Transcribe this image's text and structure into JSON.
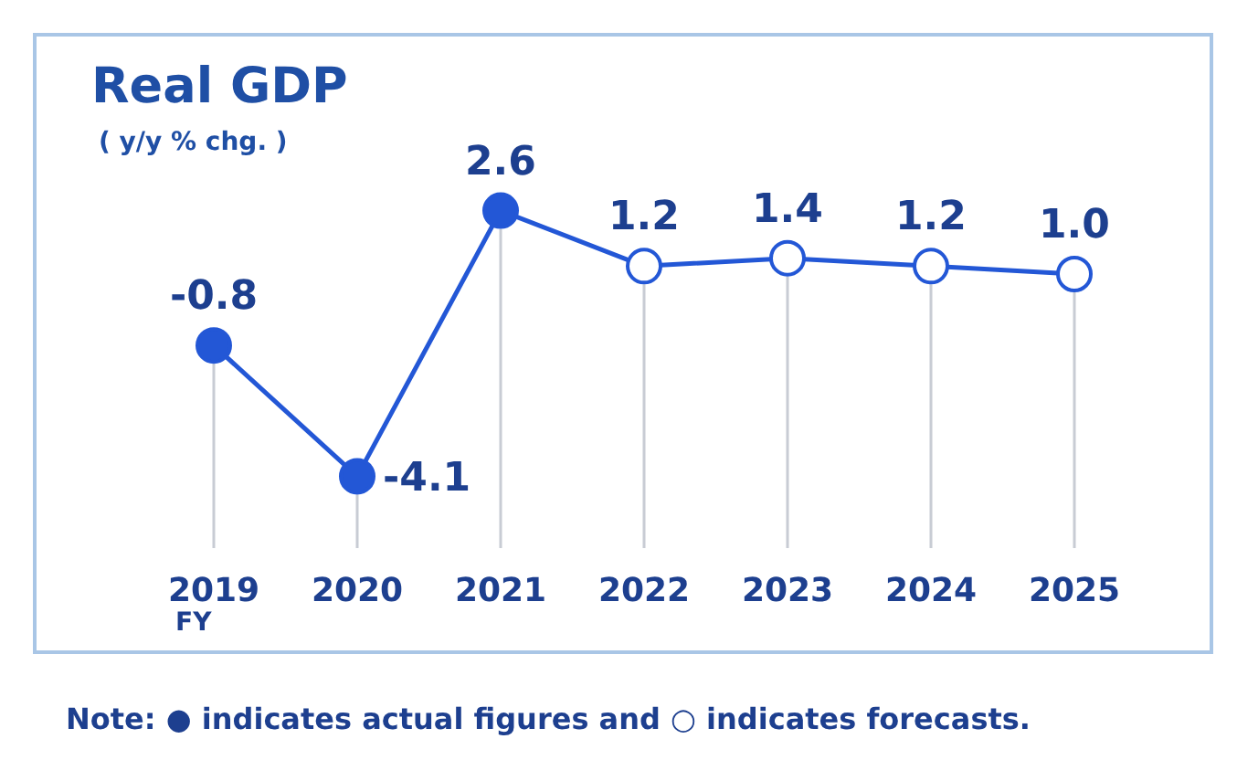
{
  "chart_data": {
    "type": "line",
    "title": "Real GDP",
    "subtitle": "( y/y % chg. )",
    "xlabel": "FY",
    "categories": [
      "2019",
      "2020",
      "2021",
      "2022",
      "2023",
      "2024",
      "2025"
    ],
    "series": [
      {
        "color": "#2357d6",
        "values": [
          -0.8,
          -4.1,
          2.6,
          null,
          null,
          null,
          null
        ],
        "value_labels": [
          "-0.8",
          "-4.1",
          "2.6",
          null,
          null,
          null,
          null
        ]
      },
      {
        "color": "#2357d6",
        "values": [
          null,
          null,
          2.6,
          1.2,
          1.4,
          1.2,
          1.0
        ],
        "value_labels": [
          null,
          null,
          null,
          "1.2",
          "1.4",
          "1.2",
          "1.0"
        ]
      }
    ],
    "marker": "circle",
    "line_style": "solid",
    "grid": "x",
    "tick_labels": "x",
    "annotations": [
      "Note: ● indicates actual figures and ○ indicates forecasts."
    ]
  }
}
